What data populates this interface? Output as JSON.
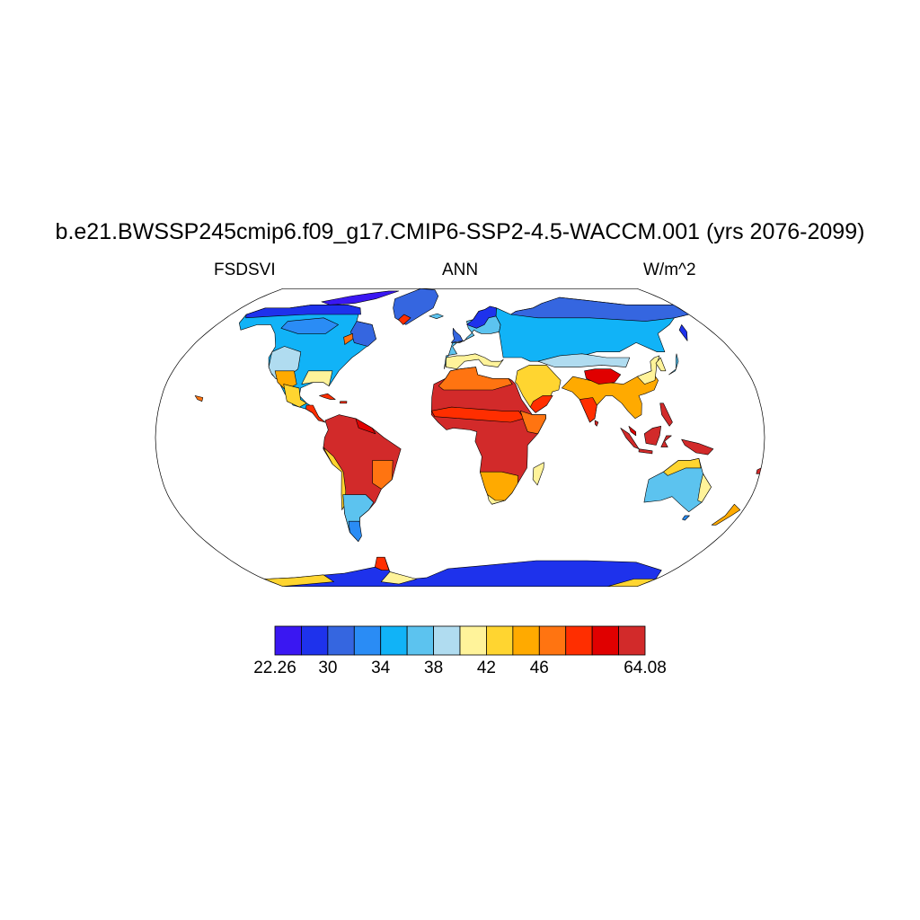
{
  "title": "b.e21.BWSSP245cmip6.f09_g17.CMIP6-SSP2-4.5-WACCM.001 (yrs 2076-2099)",
  "variable": "FSDSVI",
  "season": "ANN",
  "units": "W/m^2",
  "map": {
    "projection": "robinson",
    "ocean_color": "#ffffff",
    "coastline_color": "#000000"
  },
  "colorbar": {
    "colors": [
      "#3a17f2",
      "#1e32ec",
      "#3566e0",
      "#2a8cf5",
      "#11b3f7",
      "#5cc3ef",
      "#b0dcf0",
      "#fff39a",
      "#ffd530",
      "#ffaa00",
      "#ff7411",
      "#ff2e00",
      "#e00000",
      "#d22a2a"
    ],
    "tick_labels": [
      {
        "text": "22.26",
        "boundary": 0
      },
      {
        "text": "30",
        "boundary": 2
      },
      {
        "text": "34",
        "boundary": 4
      },
      {
        "text": "38",
        "boundary": 6
      },
      {
        "text": "42",
        "boundary": 8
      },
      {
        "text": "46",
        "boundary": 10
      },
      {
        "text": "64.08",
        "boundary": 14
      }
    ]
  }
}
